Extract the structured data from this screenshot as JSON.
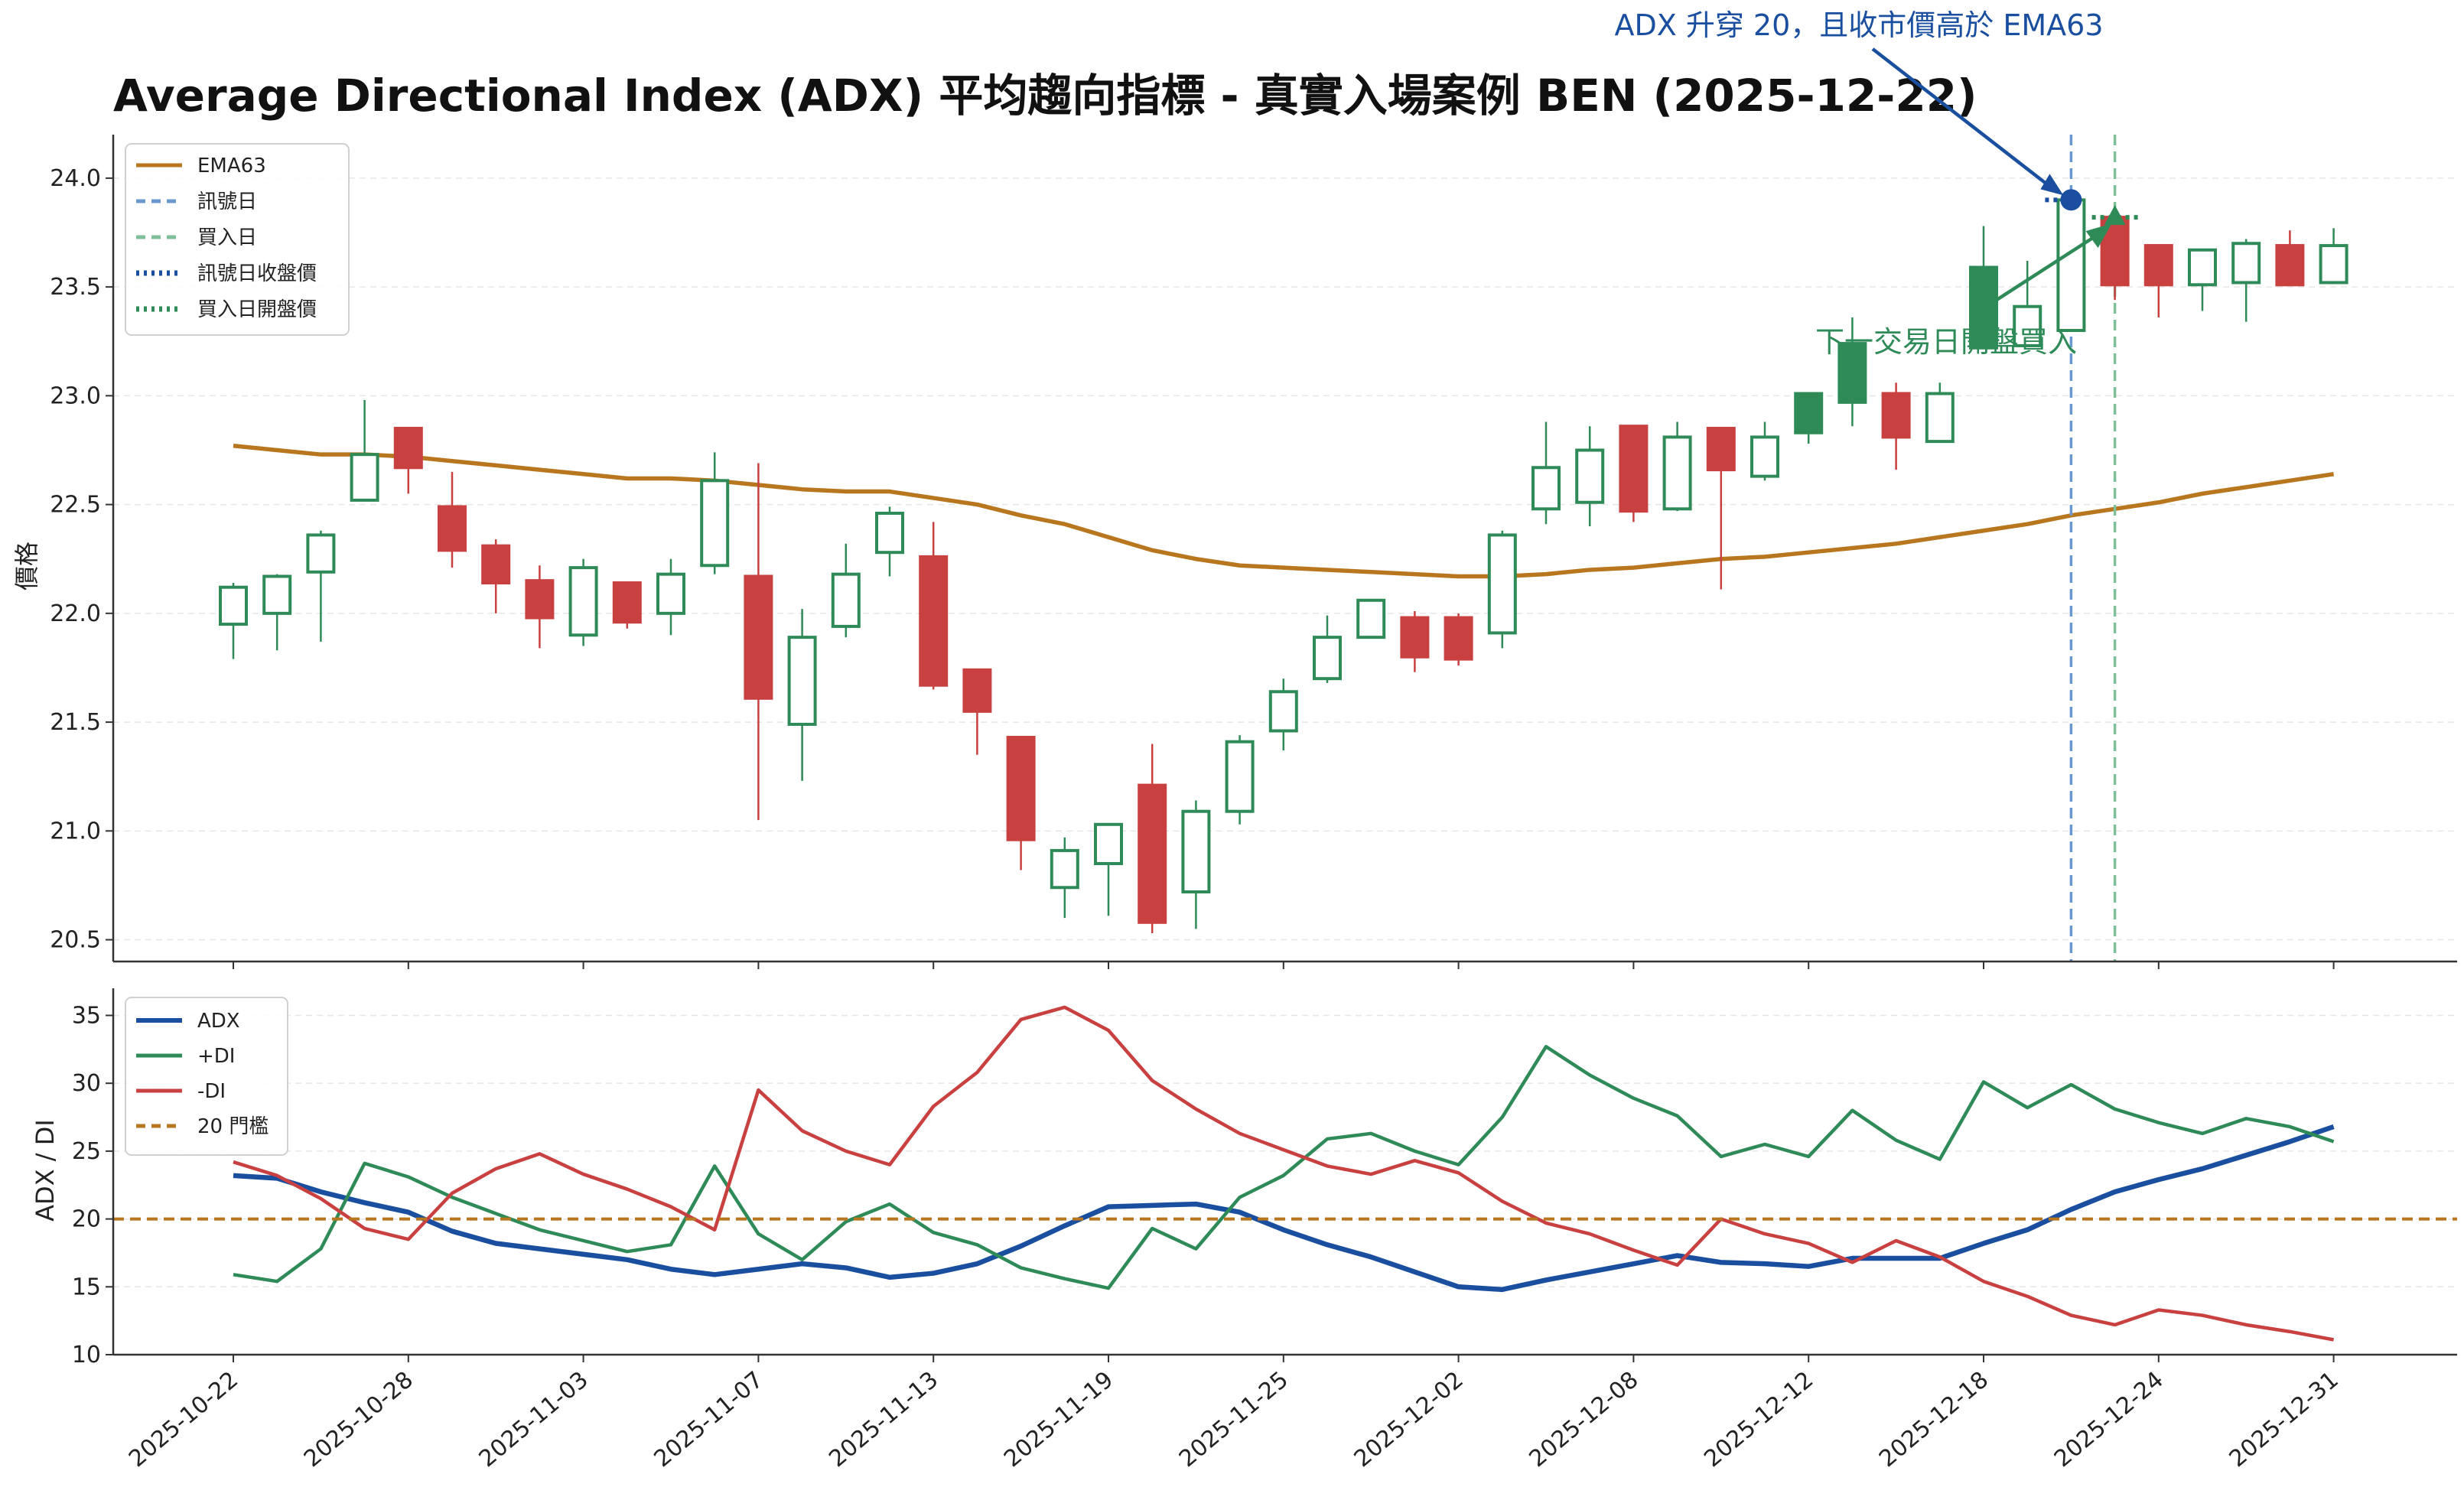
{
  "chart_data": [
    {
      "type": "candlestick",
      "title": "Average Directional Index (ADX) 平均趨向指標 - 真實入場案例 BEN (2025-12-22)",
      "ylabel": "價格",
      "ylim": [
        20.4,
        24.2
      ],
      "yticks": [
        "20.5",
        "21.0",
        "21.5",
        "22.0",
        "22.5",
        "23.0",
        "23.5",
        "24.0"
      ],
      "grid": true,
      "legend_position": "upper-left",
      "colors": {
        "up": "#2e8b57",
        "down": "#c94040",
        "ema": "#b8761f",
        "signal": "#6a98d0",
        "buy": "#7fbf9a",
        "signal_dot": "#1a4fa0",
        "buy_marker": "#2e8b57"
      },
      "legend": [
        {
          "label": "EMA63",
          "style": "solid",
          "color": "#b8761f"
        },
        {
          "label": "訊號日",
          "style": "dashed",
          "color": "#6a98d0"
        },
        {
          "label": "買入日",
          "style": "dashed",
          "color": "#7fbf9a"
        },
        {
          "label": "訊號日收盤價",
          "style": "dotted",
          "color": "#1a4fa0"
        },
        {
          "label": "買入日開盤價",
          "style": "dotted",
          "color": "#2e8b57"
        }
      ],
      "x": [
        "2025-10-22",
        "2025-10-23",
        "2025-10-24",
        "2025-10-27",
        "2025-10-28",
        "2025-10-29",
        "2025-10-30",
        "2025-10-31",
        "2025-11-03",
        "2025-11-04",
        "2025-11-05",
        "2025-11-06",
        "2025-11-07",
        "2025-11-10",
        "2025-11-11",
        "2025-11-12",
        "2025-11-13",
        "2025-11-14",
        "2025-11-17",
        "2025-11-18",
        "2025-11-19",
        "2025-11-20",
        "2025-11-21",
        "2025-11-24",
        "2025-11-25",
        "2025-11-26",
        "2025-11-28",
        "2025-12-01",
        "2025-12-02",
        "2025-12-03",
        "2025-12-04",
        "2025-12-05",
        "2025-12-08",
        "2025-12-09",
        "2025-12-10",
        "2025-12-11",
        "2025-12-12",
        "2025-12-15",
        "2025-12-16",
        "2025-12-17",
        "2025-12-18",
        "2025-12-19",
        "2025-12-22",
        "2025-12-23",
        "2025-12-24",
        "2025-12-26",
        "2025-12-29",
        "2025-12-30",
        "2025-12-31"
      ],
      "xticks": [
        "2025-10-22",
        "2025-10-28",
        "2025-11-03",
        "2025-11-07",
        "2025-11-13",
        "2025-11-19",
        "2025-11-25",
        "2025-12-02",
        "2025-12-08",
        "2025-12-12",
        "2025-12-18",
        "2025-12-24",
        "2025-12-31"
      ],
      "ohlc": [
        [
          21.95,
          22.14,
          21.79,
          22.12
        ],
        [
          22.0,
          22.18,
          21.83,
          22.17
        ],
        [
          22.19,
          22.38,
          21.87,
          22.36
        ],
        [
          22.52,
          22.98,
          22.52,
          22.73
        ],
        [
          22.85,
          22.85,
          22.55,
          22.67
        ],
        [
          22.49,
          22.65,
          22.21,
          22.29
        ],
        [
          22.31,
          22.34,
          22.0,
          22.14
        ],
        [
          22.15,
          22.22,
          21.84,
          21.98
        ],
        [
          21.9,
          22.25,
          21.85,
          22.21
        ],
        [
          22.14,
          22.14,
          21.93,
          21.96
        ],
        [
          22.0,
          22.25,
          21.9,
          22.18
        ],
        [
          22.22,
          22.74,
          22.18,
          22.61
        ],
        [
          22.17,
          22.69,
          21.05,
          21.61
        ],
        [
          21.49,
          22.02,
          21.23,
          21.89
        ],
        [
          21.94,
          22.32,
          21.89,
          22.18
        ],
        [
          22.28,
          22.49,
          22.17,
          22.46
        ],
        [
          22.26,
          22.42,
          21.65,
          21.67
        ],
        [
          21.74,
          21.74,
          21.35,
          21.55
        ],
        [
          21.43,
          21.43,
          20.82,
          20.96
        ],
        [
          20.74,
          20.97,
          20.6,
          20.91
        ],
        [
          20.85,
          21.02,
          20.61,
          21.03
        ],
        [
          21.21,
          21.4,
          20.53,
          20.58
        ],
        [
          20.72,
          21.14,
          20.55,
          21.09
        ],
        [
          21.09,
          21.44,
          21.03,
          21.41
        ],
        [
          21.46,
          21.7,
          21.37,
          21.64
        ],
        [
          21.7,
          21.99,
          21.68,
          21.89
        ],
        [
          21.89,
          22.06,
          21.89,
          22.06
        ],
        [
          21.98,
          22.01,
          21.73,
          21.8
        ],
        [
          21.98,
          22.0,
          21.76,
          21.79
        ],
        [
          21.91,
          22.38,
          21.84,
          22.36
        ],
        [
          22.48,
          22.88,
          22.41,
          22.67
        ],
        [
          22.51,
          22.86,
          22.4,
          22.75
        ],
        [
          22.86,
          22.86,
          22.42,
          22.47
        ],
        [
          22.48,
          22.88,
          22.47,
          22.81
        ],
        [
          22.85,
          22.85,
          22.11,
          22.66
        ],
        [
          22.63,
          22.88,
          22.61,
          22.81
        ],
        [
          22.83,
          23.01,
          22.78,
          23.01
        ],
        [
          22.97,
          23.36,
          22.86,
          23.24
        ],
        [
          23.01,
          23.06,
          22.66,
          22.81
        ],
        [
          22.79,
          23.06,
          22.79,
          23.01
        ],
        [
          23.22,
          23.78,
          23.22,
          23.59
        ],
        [
          23.23,
          23.62,
          23.23,
          23.41
        ],
        [
          23.3,
          23.9,
          23.3,
          23.9
        ],
        [
          23.82,
          23.86,
          23.44,
          23.51
        ],
        [
          23.69,
          23.69,
          23.36,
          23.51
        ],
        [
          23.51,
          23.67,
          23.39,
          23.67
        ],
        [
          23.52,
          23.72,
          23.34,
          23.7
        ],
        [
          23.69,
          23.76,
          23.51,
          23.51
        ],
        [
          23.52,
          23.77,
          23.52,
          23.69
        ]
      ],
      "ema63": [
        22.77,
        22.75,
        22.73,
        22.73,
        22.72,
        22.7,
        22.68,
        22.66,
        22.64,
        22.62,
        22.62,
        22.61,
        22.59,
        22.57,
        22.56,
        22.56,
        22.53,
        22.5,
        22.45,
        22.41,
        22.35,
        22.29,
        22.25,
        22.22,
        22.21,
        22.2,
        22.19,
        22.18,
        22.17,
        22.17,
        22.18,
        22.2,
        22.21,
        22.23,
        22.25,
        22.26,
        22.28,
        22.3,
        22.32,
        22.35,
        22.38,
        22.41,
        22.45,
        22.48,
        22.51,
        22.55,
        22.58,
        22.61,
        22.64
      ],
      "signal_date": "2025-12-22",
      "buy_date": "2025-12-23",
      "signal_close": 23.9,
      "buy_open": 23.82,
      "annotations": [
        {
          "text": "ADX 升穿 20，且收市價高於 EMA63",
          "color": "#1a4fa0"
        },
        {
          "text": "下一交易日開盤買入",
          "color": "#2e8b57"
        }
      ]
    },
    {
      "type": "line",
      "ylabel": "ADX / DI",
      "ylim": [
        10,
        37
      ],
      "yticks": [
        "10",
        "15",
        "20",
        "25",
        "30",
        "35"
      ],
      "grid": true,
      "legend_position": "upper-left",
      "threshold": 20,
      "series": [
        {
          "name": "ADX",
          "color": "#1a4fa0",
          "values": [
            23.2,
            23.0,
            22.0,
            21.2,
            20.5,
            19.1,
            18.2,
            17.8,
            17.4,
            17.0,
            16.3,
            15.9,
            16.3,
            16.7,
            16.4,
            15.7,
            16.0,
            16.7,
            18.0,
            19.5,
            20.9,
            21.0,
            21.1,
            20.5,
            19.2,
            18.1,
            17.2,
            16.1,
            15.0,
            14.8,
            15.5,
            16.1,
            16.7,
            17.3,
            16.8,
            16.7,
            16.5,
            17.1,
            17.1,
            17.1,
            18.2,
            19.2,
            20.7,
            22.0,
            22.9,
            23.7,
            24.7,
            25.7,
            26.8
          ]
        },
        {
          "name": "+DI",
          "color": "#2e8b57",
          "values": [
            15.9,
            15.4,
            17.8,
            24.1,
            23.1,
            21.6,
            20.4,
            19.2,
            18.4,
            17.6,
            18.1,
            23.9,
            18.9,
            17.0,
            19.8,
            21.1,
            19.0,
            18.1,
            16.4,
            15.6,
            14.9,
            19.3,
            17.8,
            21.6,
            23.2,
            25.9,
            26.3,
            25.0,
            24.0,
            27.5,
            32.7,
            30.6,
            28.9,
            27.6,
            24.6,
            25.5,
            24.6,
            28.0,
            25.8,
            24.4,
            30.1,
            28.2,
            29.9,
            28.1,
            27.1,
            26.3,
            27.4,
            26.8,
            25.7
          ]
        },
        {
          "name": "-DI",
          "color": "#c94040",
          "values": [
            24.2,
            23.2,
            21.5,
            19.3,
            18.5,
            21.9,
            23.7,
            24.8,
            23.3,
            22.2,
            20.9,
            19.2,
            29.5,
            26.5,
            25.0,
            24.0,
            28.3,
            30.8,
            34.7,
            35.6,
            33.9,
            30.2,
            28.1,
            26.3,
            25.1,
            23.9,
            23.3,
            24.3,
            23.4,
            21.3,
            19.7,
            18.9,
            17.7,
            16.6,
            20.0,
            18.9,
            18.2,
            16.8,
            18.4,
            17.2,
            15.4,
            14.3,
            12.9,
            12.2,
            13.3,
            12.9,
            12.2,
            11.7,
            11.1
          ]
        },
        {
          "name": "20 門檻",
          "color": "#b8761f",
          "values": [
            20
          ]
        }
      ]
    }
  ]
}
